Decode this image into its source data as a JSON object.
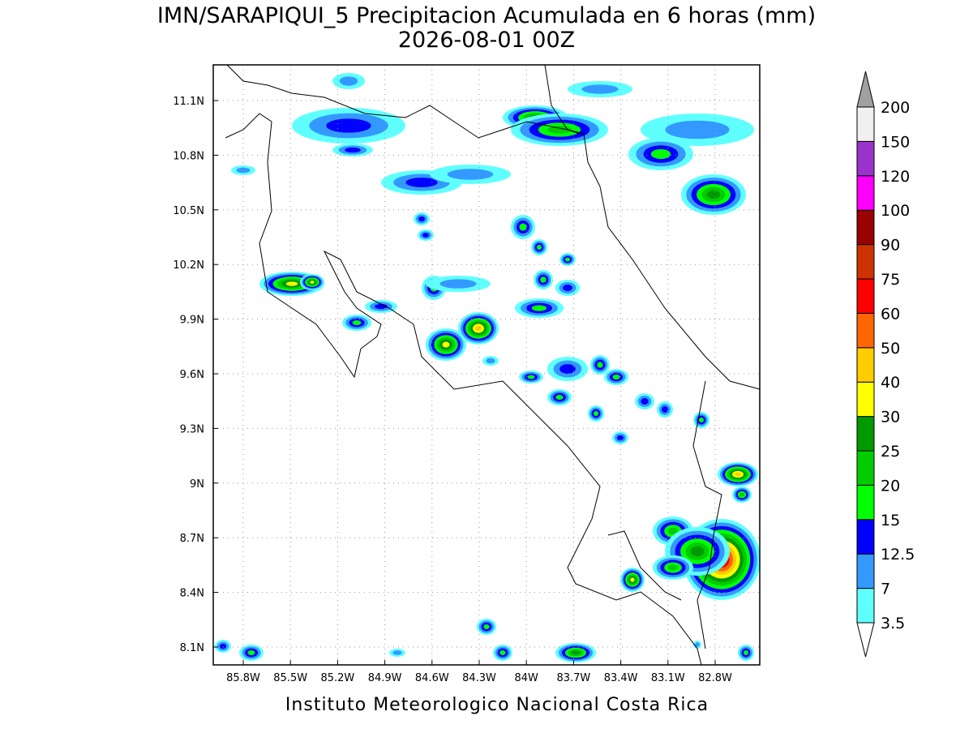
{
  "title": "IMN/SARAPIQUI_5 Precipitacion Acumulada en 6 horas (mm)",
  "subtitle": "2026-08-01 00Z",
  "footer": "Instituto Meteorologico Nacional Costa Rica",
  "lat_labels": [
    "11.1N",
    "10.8N",
    "10.5N",
    "10.2N",
    "9.9N",
    "9.6N",
    "9.3N",
    "9N",
    "8.7N",
    "8.4N",
    "8.1N"
  ],
  "lon_labels": [
    "85.8W",
    "85.5W",
    "85.2W",
    "84.9W",
    "84.6W",
    "84.3W",
    "84W",
    "83.7W",
    "83.4W",
    "83.1W",
    "82.8W"
  ],
  "colorbar": {
    "levels": [
      3.5,
      7,
      12.5,
      15,
      20,
      25,
      30,
      40,
      50,
      60,
      75,
      90,
      100,
      120,
      150,
      200
    ],
    "colors": [
      "#60ffff",
      "#3399ff",
      "#0000ff",
      "#00ff00",
      "#00cc00",
      "#009900",
      "#ffff00",
      "#ffcc00",
      "#ff6600",
      "#ff0000",
      "#cc3300",
      "#990000",
      "#ff00ff",
      "#9933cc",
      "#f0f0f0"
    ],
    "under_color": "#ffffff",
    "over_color": "#a0a0a0"
  }
}
